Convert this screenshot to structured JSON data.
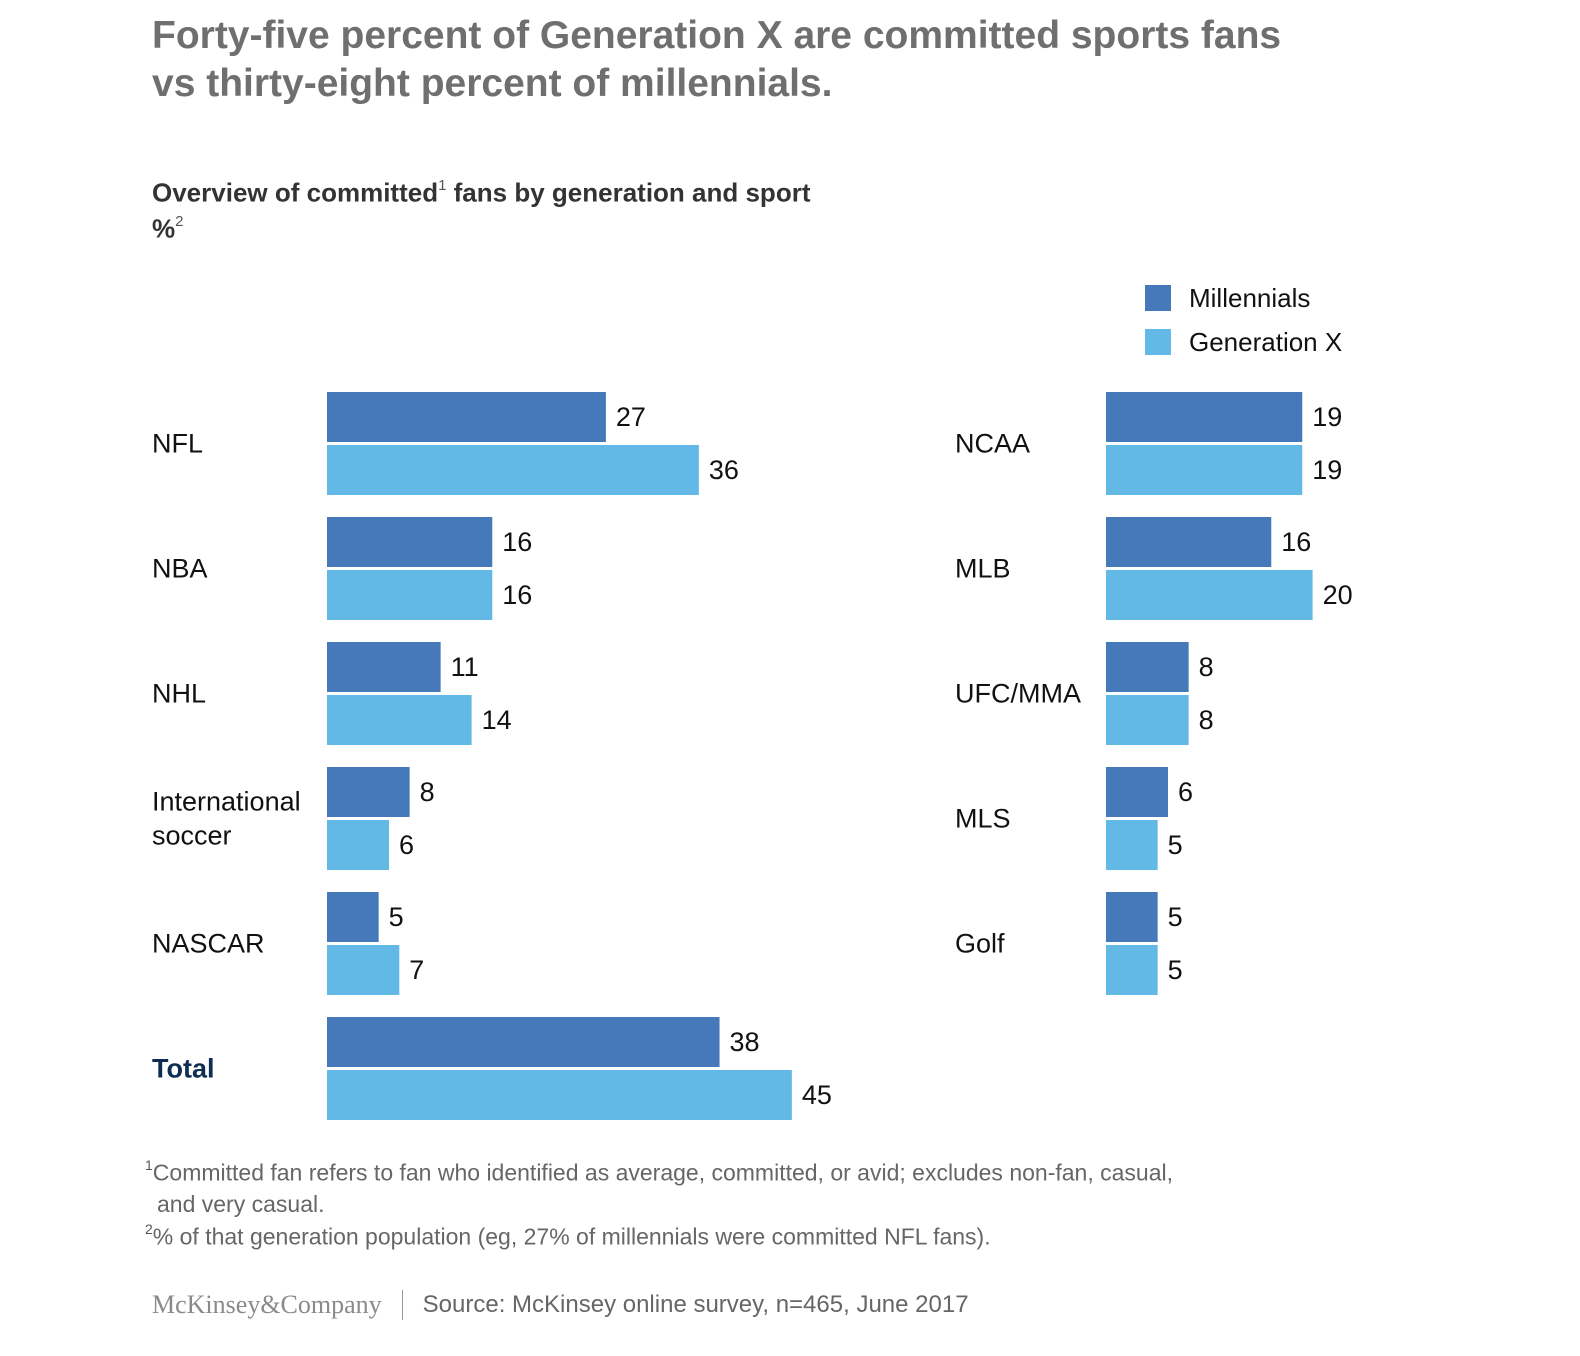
{
  "headline": {
    "line1": "Forty-five percent of Generation X are committed sports fans",
    "line2": "vs thirty-eight percent of millennials."
  },
  "subtitle": {
    "text": "Overview of committed",
    "sup": "1",
    "text_after": " fans by generation and sport",
    "unit": "%",
    "unit_sup": "2"
  },
  "legend": {
    "millennials": "Millennials",
    "genx": "Generation X"
  },
  "colors": {
    "millennials": "#4679ba",
    "genx": "#62b9e6",
    "total_label": "#0d2d52"
  },
  "chart_data": {
    "type": "bar",
    "orientation": "horizontal",
    "title": "Overview of committed fans by generation and sport",
    "unit": "%",
    "series": [
      {
        "name": "Millennials",
        "key": "millennials"
      },
      {
        "name": "Generation X",
        "key": "genx"
      }
    ],
    "panels": [
      {
        "name": "left",
        "categories": [
          {
            "label": [
              "NFL"
            ],
            "millennials": 27,
            "genx": 36
          },
          {
            "label": [
              "NBA"
            ],
            "millennials": 16,
            "genx": 16
          },
          {
            "label": [
              "NHL"
            ],
            "millennials": 11,
            "genx": 14
          },
          {
            "label": [
              "International",
              "soccer"
            ],
            "millennials": 8,
            "genx": 6
          },
          {
            "label": [
              "NASCAR"
            ],
            "millennials": 5,
            "genx": 7
          },
          {
            "label": [
              "Total"
            ],
            "millennials": 38,
            "genx": 45,
            "bold": true
          }
        ]
      },
      {
        "name": "right",
        "categories": [
          {
            "label": [
              "NCAA"
            ],
            "millennials": 19,
            "genx": 19
          },
          {
            "label": [
              "MLB"
            ],
            "millennials": 16,
            "genx": 20
          },
          {
            "label": [
              "UFC/MMA"
            ],
            "millennials": 8,
            "genx": 8
          },
          {
            "label": [
              "MLS"
            ],
            "millennials": 6,
            "genx": 5
          },
          {
            "label": [
              "Golf"
            ],
            "millennials": 5,
            "genx": 5
          }
        ]
      }
    ]
  },
  "footnotes": {
    "fn1_mark": "1",
    "fn1_line1": "Committed fan refers to fan who identified as average, committed, or avid; excludes non-fan, casual,",
    "fn1_line2": "and very casual.",
    "fn2_mark": "2",
    "fn2_text": "% of that generation population (eg, 27% of millennials were committed NFL fans)."
  },
  "footer": {
    "logo": "McKinsey&Company",
    "source": "Source: McKinsey online survey, n=465, June 2017"
  }
}
